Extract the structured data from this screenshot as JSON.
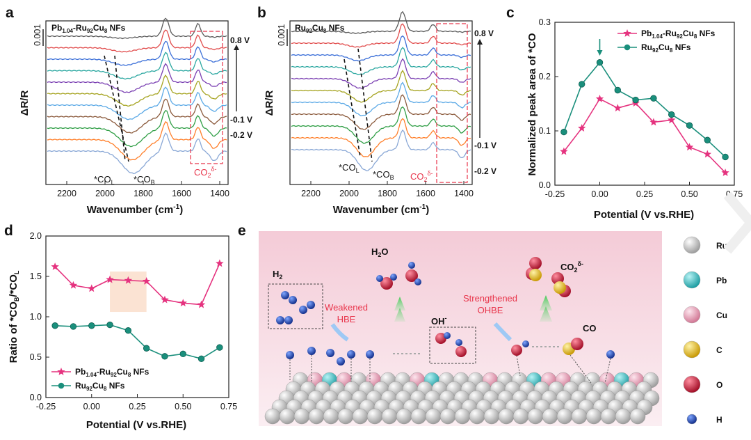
{
  "colors": {
    "pink_series": "#e5337f",
    "teal_series": "#1a8f7c",
    "annotation_red": "#e8344a",
    "panel_e_background": "#f6dfe6",
    "highlight_box": "#fbe3d3"
  },
  "panel_a": {
    "label": "a",
    "sample": "Pb1.04-Ru92Cu8 NFs",
    "scale_bar": "0.001",
    "ylabel": "ΔR/R",
    "xlabel": "Wavenumber (cm-1)",
    "xticks": [
      "2200",
      "2000",
      "1800",
      "1600",
      "1400"
    ],
    "potential_top": "0.8 V",
    "potential_mid": "-0.1 V",
    "potential_bottom": "-0.2 V",
    "peak_left": "*COL",
    "peak_right": "*COB",
    "region_label": "CO2δ-"
  },
  "panel_b": {
    "label": "b",
    "sample": "Ru92Cu8 NFs",
    "scale_bar": "0.001",
    "ylabel": "ΔR/R",
    "xlabel": "Wavenumber (cm-1)",
    "xticks": [
      "2200",
      "2000",
      "1800",
      "1600",
      "1400"
    ],
    "potential_top": "0.8 V",
    "potential_mid": "-0.1 V",
    "potential_bottom": "-0.2 V",
    "peak_left": "*COL",
    "peak_right": "*COB",
    "region_label": "CO2δ-"
  },
  "panel_d": {
    "label": "d",
    "ylabel": "Ratio of *COB/*COL",
    "xlabel": "Potential (V vs.RHE)"
  },
  "panel_c": {
    "label": "c",
    "ylabel": "Normalized peak area of *CO",
    "xlabel": "Potential (V vs.RHE)"
  },
  "panel_e": {
    "label": "e",
    "h2": "H2",
    "h2o": "H2O",
    "co2": "CO2δ-",
    "oh": "OH-",
    "co": "CO",
    "weakened": "Weakened",
    "hbe": "HBE",
    "strengthened": "Strengthened",
    "ohbe": "OHBE",
    "legend": [
      {
        "label": "Ru",
        "color": "#e6e6e6"
      },
      {
        "label": "Pb",
        "color": "#3cc8cc"
      },
      {
        "label": "Cu",
        "color": "#f0a9c1"
      },
      {
        "label": "C",
        "color": "#f2c21c"
      },
      {
        "label": "O",
        "color": "#d81e3c"
      },
      {
        "label": "H",
        "color": "#1f4fc4"
      }
    ]
  },
  "chart_data": [
    {
      "panel": "c",
      "type": "line",
      "xlabel": "Potential (V vs.RHE)",
      "ylabel": "Normalized peak area of *CO",
      "xlim": [
        -0.25,
        0.75
      ],
      "ylim": [
        0.0,
        0.3
      ],
      "xticks": [
        "-0.25",
        "0.00",
        "0.25",
        "0.50",
        "0.75"
      ],
      "yticks": [
        "0.0",
        "0.1",
        "0.2",
        "0.3"
      ],
      "legend_position": "top-right",
      "series": [
        {
          "name": "Pb1.04-Ru92Cu8 NFs",
          "marker": "star",
          "color": "#e5337f",
          "x": [
            -0.2,
            -0.1,
            0.0,
            0.1,
            0.2,
            0.3,
            0.4,
            0.5,
            0.6,
            0.7
          ],
          "y": [
            0.062,
            0.105,
            0.159,
            0.142,
            0.151,
            0.116,
            0.12,
            0.07,
            0.057,
            0.023
          ]
        },
        {
          "name": "Ru92Cu8 NFs",
          "marker": "circle",
          "color": "#1a8f7c",
          "x": [
            -0.2,
            -0.1,
            0.0,
            0.1,
            0.2,
            0.3,
            0.4,
            0.5,
            0.6,
            0.7
          ],
          "y": [
            0.098,
            0.186,
            0.226,
            0.175,
            0.157,
            0.16,
            0.13,
            0.11,
            0.083,
            0.052
          ]
        }
      ]
    },
    {
      "panel": "d",
      "type": "line",
      "xlabel": "Potential (V vs.RHE)",
      "ylabel": "Ratio of *COB/*COL",
      "xlim": [
        -0.25,
        0.75
      ],
      "ylim": [
        0.0,
        2.0
      ],
      "xticks": [
        "-0.25",
        "0.00",
        "0.25",
        "0.50",
        "0.75"
      ],
      "yticks": [
        "0.0",
        "0.5",
        "1.0",
        "1.5",
        "2.0"
      ],
      "highlight_x_range": [
        0.1,
        0.3
      ],
      "legend_position": "bottom-left",
      "series": [
        {
          "name": "Pb1.04-Ru92Cu8 NFs",
          "marker": "star",
          "color": "#e5337f",
          "x": [
            -0.2,
            -0.1,
            0.0,
            0.1,
            0.2,
            0.3,
            0.4,
            0.5,
            0.6,
            0.7
          ],
          "y": [
            1.62,
            1.39,
            1.35,
            1.46,
            1.45,
            1.44,
            1.21,
            1.17,
            1.15,
            1.66
          ]
        },
        {
          "name": "Ru92Cu8 NFs",
          "marker": "circle",
          "color": "#1a8f7c",
          "x": [
            -0.2,
            -0.1,
            0.0,
            0.1,
            0.2,
            0.3,
            0.4,
            0.5,
            0.6,
            0.7
          ],
          "y": [
            0.89,
            0.88,
            0.89,
            0.9,
            0.83,
            0.61,
            0.51,
            0.54,
            0.48,
            0.62
          ]
        }
      ]
    }
  ]
}
